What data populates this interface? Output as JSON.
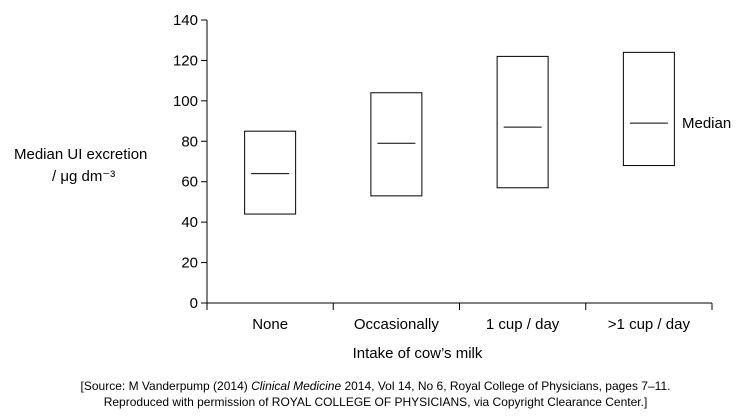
{
  "chart_data": {
    "type": "box",
    "categories": [
      "None",
      "Occasionally",
      "1 cup / day",
      ">1 cup / day"
    ],
    "boxes": [
      {
        "low": 44,
        "median": 64,
        "high": 85
      },
      {
        "low": 53,
        "median": 79,
        "high": 104
      },
      {
        "low": 57,
        "median": 87,
        "high": 122
      },
      {
        "low": 68,
        "median": 89,
        "high": 124
      }
    ],
    "ylabel_line1": "Median UI excretion",
    "ylabel_line2": "/ μg dm⁻³",
    "xlabel": "Intake of cow’s milk",
    "ylim": [
      0,
      140
    ],
    "yticks": [
      0,
      20,
      40,
      60,
      80,
      100,
      120,
      140
    ],
    "annotation": "Median",
    "grid": false
  },
  "source": {
    "prefix": "[Source: M Vanderpump (2014) ",
    "journal": "Clinical Medicine",
    "suffix": " 2014, Vol 14, No 6, Royal College of Physicians, pages 7–11.",
    "line2": "Reproduced with permission of ROYAL COLLEGE OF PHYSICIANS, via Copyright Clearance Center.]"
  }
}
